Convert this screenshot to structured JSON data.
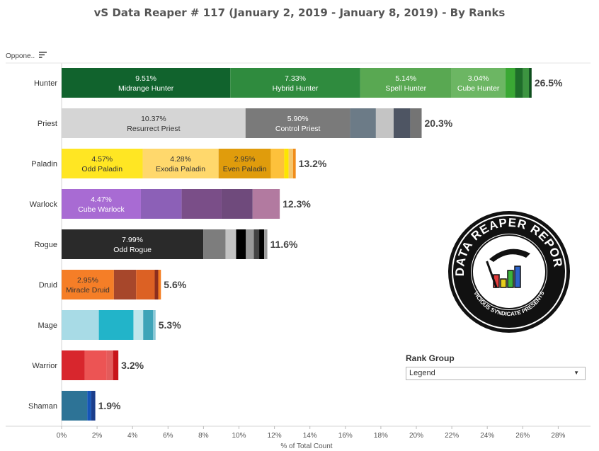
{
  "title": "vS Data Reaper #  117 (January 2, 2019 - January 8, 2019) - By Ranks",
  "header": {
    "column_label": "Oppone..",
    "sort_icon": "sort-descending-icon"
  },
  "rank_group": {
    "title": "Rank Group",
    "selected": "Legend",
    "caret_icon": "chevron-down-icon"
  },
  "logo": {
    "name": "data-reaper-report-logo",
    "main_text": "DATA REAPER REPORT",
    "sub_text": "VICIOUS SYNDICATE PRESENTS"
  },
  "chart_data": {
    "type": "bar",
    "orientation": "horizontal",
    "stacked": true,
    "xlabel": "% of Total Count",
    "xlim": [
      0,
      28
    ],
    "xticks": [
      "0%",
      "2%",
      "4%",
      "6%",
      "8%",
      "10%",
      "12%",
      "14%",
      "16%",
      "18%",
      "20%",
      "22%",
      "24%",
      "26%",
      "28%"
    ],
    "grid": false,
    "categories": [
      "Hunter",
      "Priest",
      "Paladin",
      "Warlock",
      "Rogue",
      "Druid",
      "Mage",
      "Warrior",
      "Shaman"
    ],
    "rows": [
      {
        "class": "Hunter",
        "total": 26.5,
        "total_label": "26.5%",
        "segments": [
          {
            "value": 9.51,
            "color": "#11632d",
            "pct": "9.51%",
            "name": "Midrange Hunter"
          },
          {
            "value": 7.33,
            "color": "#2f8b3e",
            "pct": "7.33%",
            "name": "Hybrid Hunter"
          },
          {
            "value": 5.14,
            "color": "#59a852",
            "pct": "5.14%",
            "name": "Spell Hunter"
          },
          {
            "value": 3.04,
            "color": "#6cb663",
            "pct": "3.04%",
            "name": "Cube Hunter"
          },
          {
            "value": 0.55,
            "color": "#3aa834"
          },
          {
            "value": 0.45,
            "color": "#1e6e2a"
          },
          {
            "value": 0.33,
            "color": "#3c9440"
          },
          {
            "value": 0.15,
            "color": "#0e4e1d"
          }
        ]
      },
      {
        "class": "Priest",
        "total": 20.3,
        "total_label": "20.3%",
        "segments": [
          {
            "value": 10.37,
            "color": "#d5d5d5",
            "pct": "10.37%",
            "name": "Resurrect Priest",
            "dark_text": true
          },
          {
            "value": 5.9,
            "color": "#7a7a7a",
            "pct": "5.90%",
            "name": "Control Priest"
          },
          {
            "value": 1.45,
            "color": "#6c7b87"
          },
          {
            "value": 1.0,
            "color": "#c4c4c4"
          },
          {
            "value": 0.95,
            "color": "#4e5563"
          },
          {
            "value": 0.63,
            "color": "#747474"
          }
        ]
      },
      {
        "class": "Paladin",
        "total": 13.2,
        "total_label": "13.2%",
        "segments": [
          {
            "value": 4.57,
            "color": "#ffe623",
            "pct": "4.57%",
            "name": "Odd Paladin",
            "dark_text": true
          },
          {
            "value": 4.28,
            "color": "#ffd86c",
            "pct": "4.28%",
            "name": "Exodia Paladin",
            "dark_text": true
          },
          {
            "value": 2.95,
            "color": "#e09c0c",
            "pct": "2.95%",
            "name": "Even Paladin",
            "dark_text": true
          },
          {
            "value": 0.75,
            "color": "#fdc13b"
          },
          {
            "value": 0.25,
            "color": "#fde500"
          },
          {
            "value": 0.25,
            "color": "#f6c66a"
          },
          {
            "value": 0.15,
            "color": "#f08c1a"
          }
        ]
      },
      {
        "class": "Warlock",
        "total": 12.3,
        "total_label": "12.3%",
        "segments": [
          {
            "value": 4.47,
            "color": "#a86bd3",
            "pct": "4.47%",
            "name": "Cube Warlock"
          },
          {
            "value": 2.3,
            "color": "#8c60b7"
          },
          {
            "value": 2.25,
            "color": "#7a4e88"
          },
          {
            "value": 1.75,
            "color": "#6f4a7c"
          },
          {
            "value": 1.53,
            "color": "#b27aa0"
          }
        ]
      },
      {
        "class": "Rogue",
        "total": 11.6,
        "total_label": "11.6%",
        "segments": [
          {
            "value": 7.99,
            "color": "#2a2a2a",
            "pct": "7.99%",
            "name": "Odd Rogue"
          },
          {
            "value": 1.25,
            "color": "#7d7d7d"
          },
          {
            "value": 0.6,
            "color": "#c2c2c2"
          },
          {
            "value": 0.55,
            "color": "#000000"
          },
          {
            "value": 0.45,
            "color": "#9a9a9a"
          },
          {
            "value": 0.3,
            "color": "#444444"
          },
          {
            "value": 0.28,
            "color": "#000000"
          },
          {
            "value": 0.18,
            "color": "#9c9c9c"
          }
        ]
      },
      {
        "class": "Druid",
        "total": 5.6,
        "total_label": "5.6%",
        "segments": [
          {
            "value": 2.95,
            "color": "#f57e27",
            "pct": "2.95%",
            "name": "Miracle Druid",
            "dark_text": true
          },
          {
            "value": 1.25,
            "color": "#a7472b"
          },
          {
            "value": 1.05,
            "color": "#dc6124"
          },
          {
            "value": 0.2,
            "color": "#8c2e1e"
          },
          {
            "value": 0.15,
            "color": "#f47c1f"
          }
        ]
      },
      {
        "class": "Mage",
        "total": 5.3,
        "total_label": "5.3%",
        "segments": [
          {
            "value": 2.1,
            "color": "#a8dbe6"
          },
          {
            "value": 1.95,
            "color": "#22b4c9"
          },
          {
            "value": 0.55,
            "color": "#bfe6ec"
          },
          {
            "value": 0.55,
            "color": "#3ea4b8"
          },
          {
            "value": 0.15,
            "color": "#8cc8d6"
          }
        ]
      },
      {
        "class": "Warrior",
        "total": 3.2,
        "total_label": "3.2%",
        "segments": [
          {
            "value": 1.3,
            "color": "#d8262d"
          },
          {
            "value": 1.25,
            "color": "#ec5454"
          },
          {
            "value": 0.35,
            "color": "#e35b5b"
          },
          {
            "value": 0.3,
            "color": "#c8141a"
          }
        ]
      },
      {
        "class": "Shaman",
        "total": 1.9,
        "total_label": "1.9%",
        "segments": [
          {
            "value": 1.45,
            "color": "#2d7396"
          },
          {
            "value": 0.22,
            "color": "#1555b8"
          },
          {
            "value": 0.23,
            "color": "#1b3e8c"
          }
        ]
      }
    ]
  }
}
